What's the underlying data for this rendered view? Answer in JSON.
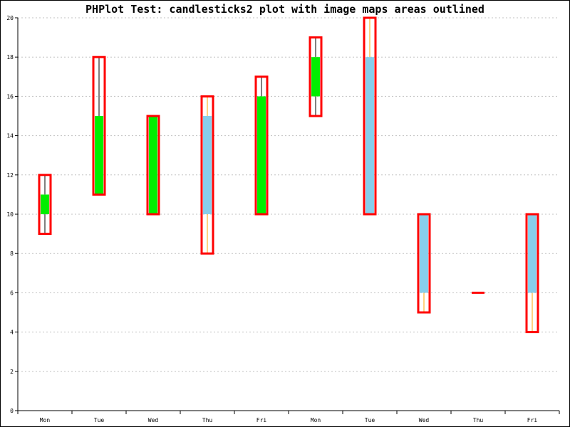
{
  "chart_data": {
    "type": "candlestick",
    "title": "PHPlot Test: candlesticks2 plot with image maps areas outlined",
    "categories": [
      "Mon",
      "Tue",
      "Wed",
      "Thu",
      "Fri",
      "Mon",
      "Tue",
      "Wed",
      "Thu",
      "Fri"
    ],
    "series": [
      {
        "open": [
          10,
          11,
          10,
          15,
          10,
          16,
          18,
          10,
          6,
          10
        ],
        "high": [
          12,
          18,
          15,
          16,
          17,
          19,
          20,
          10,
          6,
          10
        ],
        "low": [
          9,
          11,
          10,
          8,
          10,
          15,
          10,
          5,
          6,
          4
        ],
        "close": [
          11,
          15,
          15,
          10,
          16,
          18,
          10,
          6,
          6,
          6
        ]
      }
    ],
    "ylim": [
      0,
      20
    ],
    "yticks": [
      0,
      2,
      4,
      6,
      8,
      10,
      12,
      14,
      16,
      18,
      20
    ],
    "grid": {
      "y": true,
      "x": false
    },
    "colors": {
      "rising_body": "#00ee00",
      "falling_body": "#87ceeb",
      "wick_up": "#000000",
      "wick_down": "#ffa500",
      "image_map_outline": "#ff0000",
      "grid": "#c0c0c0",
      "axis": "#000000"
    }
  }
}
